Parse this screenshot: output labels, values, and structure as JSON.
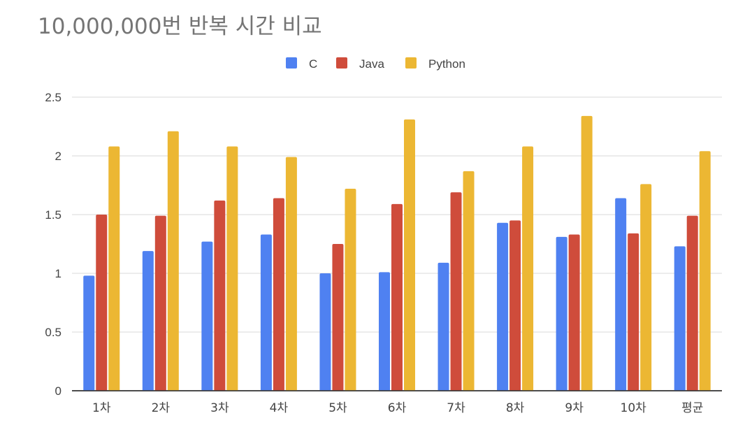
{
  "chart_data": {
    "type": "bar",
    "title": "10,000,000번 반복 시간 비교",
    "categories": [
      "1차",
      "2차",
      "3차",
      "4차",
      "5차",
      "6차",
      "7차",
      "8차",
      "9차",
      "10차",
      "평균"
    ],
    "series": [
      {
        "name": "C",
        "color": "#4f81f1",
        "values": [
          0.98,
          1.19,
          1.27,
          1.33,
          1.0,
          1.01,
          1.09,
          1.43,
          1.31,
          1.64,
          1.23
        ]
      },
      {
        "name": "Java",
        "color": "#cf4c3b",
        "values": [
          1.5,
          1.49,
          1.62,
          1.64,
          1.25,
          1.59,
          1.69,
          1.45,
          1.33,
          1.34,
          1.49
        ]
      },
      {
        "name": "Python",
        "color": "#ecb733",
        "values": [
          2.08,
          2.21,
          2.08,
          1.99,
          1.72,
          2.31,
          1.87,
          2.08,
          2.34,
          1.76,
          2.04
        ]
      }
    ],
    "ylim": [
      0,
      2.5
    ],
    "yticks": [
      0,
      0.5,
      1,
      1.5,
      2,
      2.5
    ],
    "ytick_labels": [
      "0",
      "0.5",
      "1",
      "1.5",
      "2",
      "2.5"
    ],
    "xlabel": "",
    "ylabel": "",
    "grid": true,
    "legend_position": "top-center"
  }
}
